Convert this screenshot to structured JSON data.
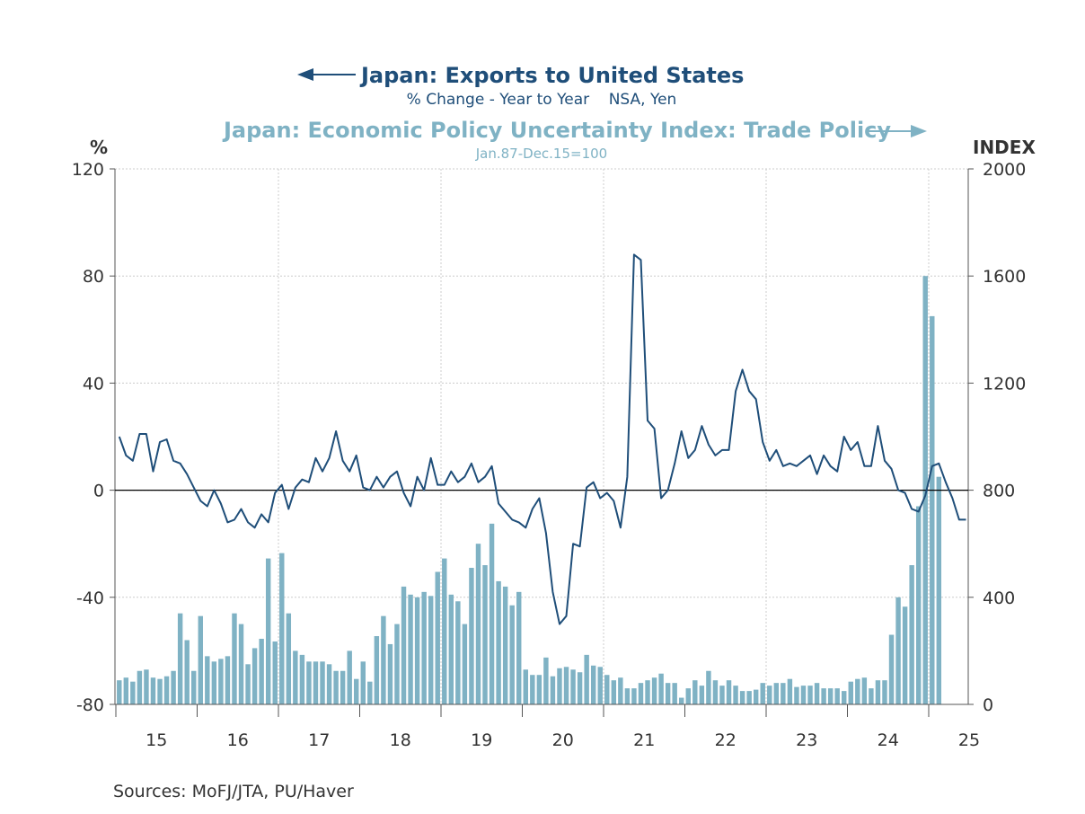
{
  "chart_data": {
    "type": "bar+line",
    "title_left": "Japan: Exports to United States",
    "subtitle_left": "% Change - Year to Year    NSA, Yen",
    "title_right": "Japan: Economic Policy Uncertainty Index: Trade Policy",
    "subtitle_right": "Jan.87-Dec.15=100",
    "y_left_unit": "%",
    "y_right_unit": "INDEX",
    "y_left": {
      "min": -80,
      "max": 120,
      "ticks": [
        "120",
        "80",
        "40",
        "0",
        "-40",
        "-80"
      ],
      "tick_values": [
        120,
        80,
        40,
        0,
        -40,
        -80
      ]
    },
    "y_right": {
      "min": 0,
      "max": 2000,
      "ticks": [
        "2000",
        "1600",
        "1200",
        "800",
        "400",
        "0"
      ],
      "tick_values": [
        2000,
        1600,
        1200,
        800,
        400,
        0
      ]
    },
    "x_range": [
      "2015-01",
      "2025-03"
    ],
    "x_ticks": [
      "15",
      "16",
      "17",
      "18",
      "19",
      "20",
      "21",
      "22",
      "23",
      "24",
      "25"
    ],
    "grid": true,
    "colors": {
      "line": "#1f4e79",
      "bar": "#7fb2c4",
      "title_left": "#1f4e79",
      "title_right": "#7fb2c4",
      "zero_line": "#000000",
      "grid": "#cccccc"
    },
    "series": [
      {
        "name": "Japan: Exports to United States",
        "type": "line",
        "axis": "left",
        "unit": "% Change - Year to Year",
        "values": [
          20,
          13,
          11,
          21,
          21,
          7,
          18,
          19,
          11,
          10,
          6,
          1,
          -4,
          -6,
          0,
          -5,
          -12,
          -11,
          -7,
          -12,
          -14,
          -9,
          -12,
          -1,
          2,
          -7,
          1,
          4,
          3,
          12,
          7,
          12,
          22,
          11,
          7,
          13,
          1,
          0,
          5,
          1,
          5,
          7,
          -1,
          -6,
          5,
          0,
          12,
          2,
          2,
          7,
          3,
          5,
          10,
          3,
          5,
          9,
          -5,
          -8,
          -11,
          -12,
          -14,
          -7,
          -3,
          -16,
          -38,
          -50,
          -47,
          -20,
          -21,
          1,
          3,
          -3,
          -1,
          -4,
          -14,
          5,
          88,
          86,
          26,
          23,
          -3,
          0,
          10,
          22,
          12,
          15,
          24,
          17,
          13,
          15,
          15,
          37,
          45,
          37,
          34,
          18,
          11,
          15,
          9,
          10,
          9,
          11,
          13,
          6,
          13,
          9,
          7,
          20,
          15,
          18,
          9,
          9,
          24,
          11,
          8,
          0,
          -1,
          -7,
          -8,
          -2,
          9,
          10,
          3,
          -3,
          -11,
          -11
        ]
      },
      {
        "name": "Japan: Economic Policy Uncertainty Index: Trade Policy",
        "type": "bar",
        "axis": "right",
        "unit": "Jan.87-Dec.15=100",
        "values": [
          90,
          100,
          85,
          125,
          130,
          100,
          95,
          105,
          125,
          340,
          240,
          125,
          330,
          180,
          160,
          170,
          180,
          340,
          300,
          150,
          210,
          245,
          545,
          235,
          565,
          340,
          200,
          185,
          160,
          160,
          160,
          150,
          125,
          125,
          200,
          95,
          160,
          85,
          255,
          330,
          225,
          300,
          440,
          410,
          400,
          420,
          405,
          495,
          545,
          410,
          385,
          300,
          510,
          600,
          520,
          675,
          460,
          440,
          370,
          420,
          130,
          110,
          110,
          175,
          105,
          135,
          140,
          130,
          120,
          185,
          145,
          140,
          110,
          90,
          100,
          60,
          60,
          80,
          90,
          100,
          115,
          80,
          80,
          25,
          60,
          90,
          70,
          125,
          90,
          70,
          90,
          70,
          50,
          50,
          55,
          80,
          70,
          80,
          80,
          95,
          65,
          70,
          70,
          80,
          60,
          60,
          60,
          50,
          85,
          95,
          100,
          60,
          90,
          90,
          260,
          400,
          365,
          520,
          740,
          1600,
          1450,
          850
        ]
      }
    ]
  },
  "footer": {
    "sources": "Sources:  MoFJ/JTA, PU/Haver"
  }
}
